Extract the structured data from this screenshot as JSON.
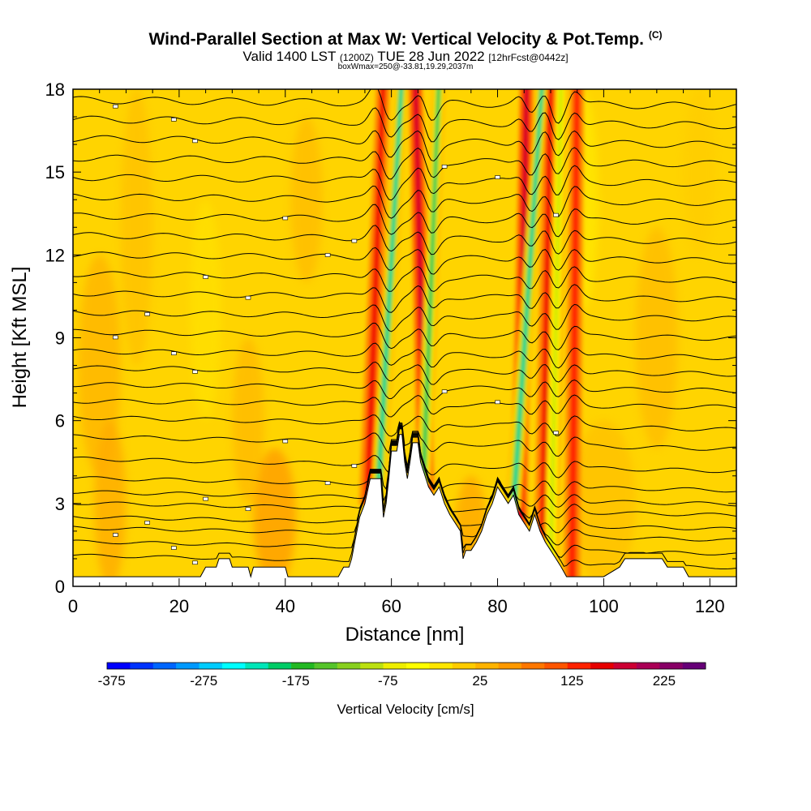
{
  "header": {
    "title": "Wind-Parallel Section at Max W: Vertical Velocity & Pot.Temp.",
    "copyright": "(C)",
    "valid_prefix": "Valid 1400 LST",
    "valid_utc": "(1200Z)",
    "valid_date": "TUE 28 Jun 2022",
    "forecast": "[12hrFcst@0442z]",
    "box_info": "boxWmax=250@-33.81,19.29,2037m"
  },
  "chart_data": {
    "type": "heatmap",
    "title": "Wind-Parallel Section at Max W: Vertical Velocity & Pot.Temp.",
    "xlabel": "Distance [nm]",
    "ylabel": "Height [Kft MSL]",
    "xlim": [
      0,
      125
    ],
    "ylim": [
      0,
      18
    ],
    "xticks": [
      0,
      20,
      40,
      60,
      80,
      100,
      120
    ],
    "yticks": [
      0,
      3,
      6,
      9,
      12,
      15,
      18
    ],
    "colorbar": {
      "label": "Vertical Velocity [cm/s]",
      "tick_labels": [
        -375,
        -275,
        -175,
        -75,
        25,
        125,
        225
      ],
      "colors": [
        "#0000ff",
        "#0033ff",
        "#0066ff",
        "#0099ff",
        "#00ccff",
        "#00ffff",
        "#00e6b8",
        "#00cc66",
        "#22b822",
        "#55c42a",
        "#88d01e",
        "#bbe010",
        "#eeee00",
        "#ffff00",
        "#ffe600",
        "#ffcc00",
        "#ffb300",
        "#ff9900",
        "#ff7700",
        "#ff5500",
        "#ff2200",
        "#e60000",
        "#cc0033",
        "#aa0055",
        "#880066",
        "#660077"
      ]
    },
    "terrain_kft": [
      [
        0,
        0.35
      ],
      [
        20,
        0.35
      ],
      [
        24,
        0.35
      ],
      [
        25,
        0.7
      ],
      [
        27,
        0.7
      ],
      [
        27.5,
        1.0
      ],
      [
        29.5,
        1.0
      ],
      [
        30,
        0.7
      ],
      [
        33,
        0.7
      ],
      [
        33.5,
        0.35
      ],
      [
        34,
        0.7
      ],
      [
        40,
        0.7
      ],
      [
        40.5,
        0.35
      ],
      [
        50,
        0.35
      ],
      [
        51,
        0.7
      ],
      [
        52,
        0.7
      ],
      [
        52.5,
        1.0
      ],
      [
        53,
        1.5
      ],
      [
        54,
        2.5
      ],
      [
        55,
        3.0
      ],
      [
        56,
        3.9
      ],
      [
        58,
        3.9
      ],
      [
        58.5,
        2.5
      ],
      [
        59,
        3.0
      ],
      [
        59.5,
        3.9
      ],
      [
        60,
        4.9
      ],
      [
        61,
        4.9
      ],
      [
        61.5,
        5.5
      ],
      [
        62,
        5.5
      ],
      [
        62.5,
        4.5
      ],
      [
        63,
        3.9
      ],
      [
        63.5,
        4.5
      ],
      [
        64,
        5.2
      ],
      [
        65,
        5.2
      ],
      [
        65.5,
        4.5
      ],
      [
        66,
        4.2
      ],
      [
        66.5,
        3.9
      ],
      [
        67,
        3.6
      ],
      [
        68,
        3.3
      ],
      [
        69,
        3.6
      ],
      [
        70,
        3.0
      ],
      [
        71,
        2.6
      ],
      [
        72,
        2.3
      ],
      [
        73,
        2.0
      ],
      [
        73.5,
        1.0
      ],
      [
        74,
        1.3
      ],
      [
        75,
        1.3
      ],
      [
        76,
        1.6
      ],
      [
        77,
        2.0
      ],
      [
        78,
        2.6
      ],
      [
        79,
        3.0
      ],
      [
        80,
        3.6
      ],
      [
        81,
        3.3
      ],
      [
        82,
        3.0
      ],
      [
        83,
        3.3
      ],
      [
        84,
        2.6
      ],
      [
        85,
        2.3
      ],
      [
        86,
        2.0
      ],
      [
        87,
        2.6
      ],
      [
        88,
        2.0
      ],
      [
        89,
        1.6
      ],
      [
        90,
        1.3
      ],
      [
        91,
        1.0
      ],
      [
        92,
        0.7
      ],
      [
        93,
        0.35
      ],
      [
        100,
        0.35
      ],
      [
        103,
        0.7
      ],
      [
        104,
        1.0
      ],
      [
        111,
        1.0
      ],
      [
        112,
        0.7
      ],
      [
        115,
        0.7
      ],
      [
        116,
        0.35
      ],
      [
        125,
        0.35
      ]
    ],
    "updrafts": [
      {
        "x_bottom": 55.5,
        "x_top": 58.5,
        "peak": 170
      },
      {
        "x_bottom": 66.5,
        "x_top": 64.5,
        "peak": 200
      },
      {
        "x_bottom": 84.0,
        "x_top": 85.5,
        "peak": 180
      },
      {
        "x_bottom": 88.5,
        "x_top": 90.0,
        "peak": 150
      },
      {
        "x_bottom": 94.0,
        "x_top": 95.0,
        "peak": 140
      }
    ],
    "downdrafts": [
      {
        "x_bottom": 57.5,
        "x_top": 62.0,
        "min": -300
      },
      {
        "x_bottom": 66.0,
        "x_top": 69.0,
        "min": -250
      },
      {
        "x_bottom": 83.0,
        "x_top": 88.5,
        "min": -300
      },
      {
        "x_bottom": 90.0,
        "x_top": 92.0,
        "min": -150
      }
    ],
    "theta_levels_kft": [
      0.9,
      1.4,
      1.9,
      2.3,
      2.8,
      3.2,
      3.7,
      4.4,
      5.2,
      5.9,
      6.6,
      7.2,
      7.8,
      8.4,
      9.1,
      9.8,
      10.5,
      11.2,
      11.9,
      12.6,
      13.3,
      14.0,
      14.7,
      15.4,
      16.1,
      16.8,
      17.5
    ]
  }
}
